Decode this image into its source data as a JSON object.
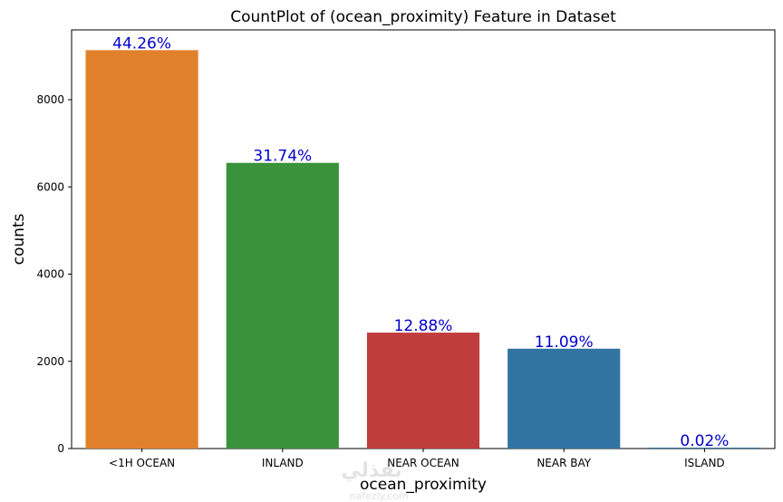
{
  "chart_data": {
    "type": "bar",
    "title": "CountPlot of (ocean_proximity) Feature in Dataset",
    "xlabel": "ocean_proximity",
    "ylabel": "counts",
    "categories": [
      "<1H OCEAN",
      "INLAND",
      "NEAR OCEAN",
      "NEAR BAY",
      "ISLAND"
    ],
    "values": [
      9136,
      6551,
      2658,
      2290,
      5
    ],
    "data_labels": [
      "44.26%",
      "31.74%",
      "12.88%",
      "11.09%",
      "0.02%"
    ],
    "colors": [
      "#e1812c",
      "#3a923a",
      "#c03d3e",
      "#3274a1",
      "#3274a1"
    ],
    "label_color": "#0000cc",
    "ylim": [
      0,
      9600
    ],
    "yticks": [
      0,
      2000,
      4000,
      6000,
      8000
    ],
    "grid": false
  },
  "watermark": {
    "text": "نفذلي",
    "subtext": "nafezly.com"
  }
}
